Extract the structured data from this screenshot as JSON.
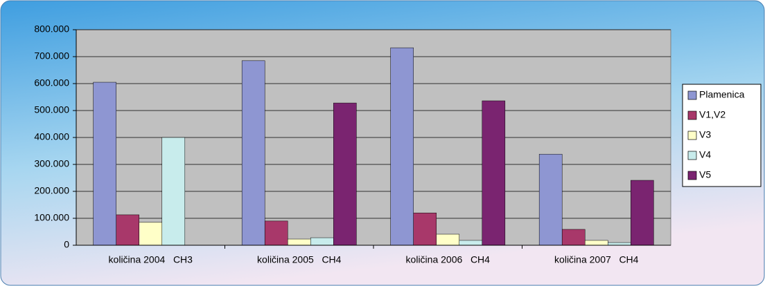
{
  "chart_data": {
    "type": "bar",
    "categories": [
      "količina 2004   CH3",
      "količina 2005   CH4",
      "količina 2006   CH4",
      "količina 2007   CH4"
    ],
    "series": [
      {
        "name": "Plamenica",
        "color": "#8e96d2",
        "values": [
          605000,
          685000,
          733000,
          338000
        ]
      },
      {
        "name": "V1,V2",
        "color": "#a8386a",
        "values": [
          113000,
          90000,
          120000,
          59000
        ]
      },
      {
        "name": "V3",
        "color": "#ffffc8",
        "values": [
          85000,
          23000,
          41000,
          18000
        ]
      },
      {
        "name": "V4",
        "color": "#c8ecec",
        "values": [
          400000,
          28000,
          18000,
          10000
        ]
      },
      {
        "name": "V5",
        "color": "#7a2470",
        "values": [
          0,
          528000,
          536000,
          241000
        ]
      }
    ],
    "ylim": [
      0,
      800000
    ],
    "yticks": [
      {
        "value": 0,
        "label": "0"
      },
      {
        "value": 100000,
        "label": "100.000"
      },
      {
        "value": 200000,
        "label": "200.000"
      },
      {
        "value": 300000,
        "label": "300.000"
      },
      {
        "value": 400000,
        "label": "400.000"
      },
      {
        "value": 500000,
        "label": "500.000"
      },
      {
        "value": 600000,
        "label": "600.000"
      },
      {
        "value": 700000,
        "label": "700.000"
      },
      {
        "value": 800000,
        "label": "800.000"
      }
    ],
    "grid": true,
    "legend": "right"
  }
}
